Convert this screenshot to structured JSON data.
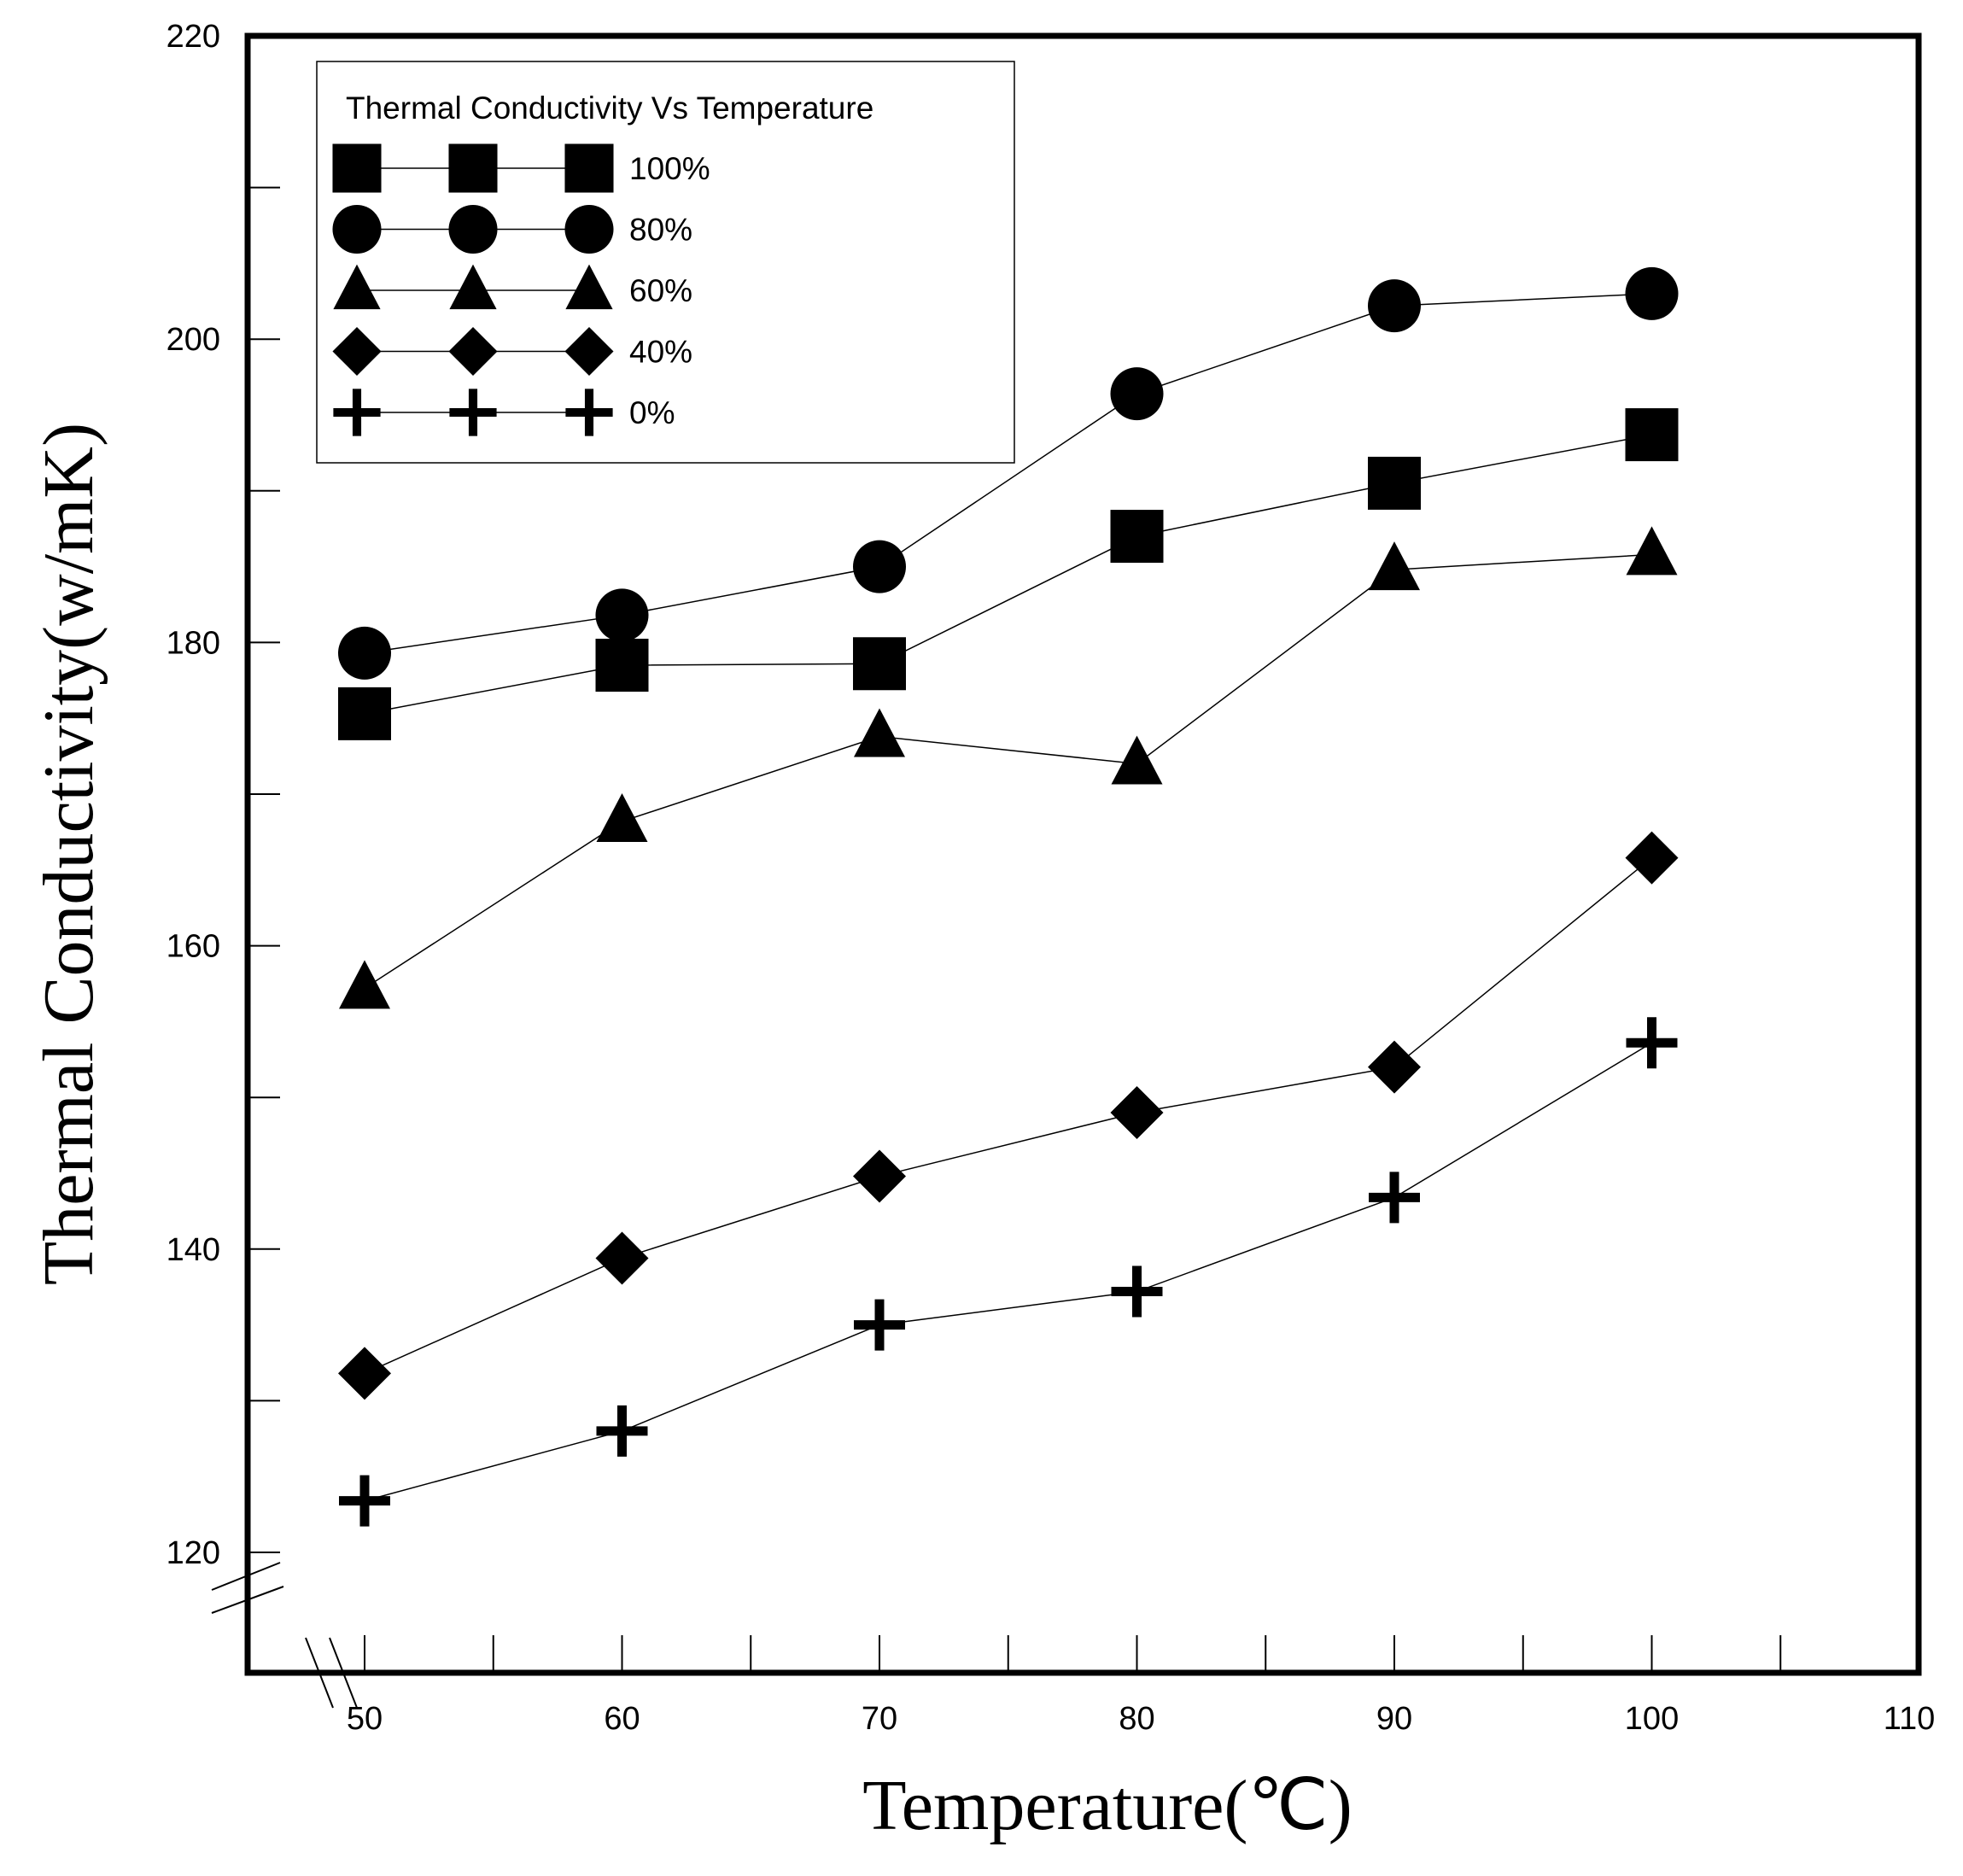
{
  "chart_data": {
    "type": "line",
    "xlabel": "Temperature(℃)",
    "ylabel": "Thermal Conductivity(w/mK)",
    "xlim": [
      45,
      110
    ],
    "ylim": [
      114,
      220
    ],
    "xticks": [
      50,
      60,
      70,
      80,
      90,
      100,
      110
    ],
    "yticks": [
      120,
      140,
      160,
      180,
      200,
      220
    ],
    "legend": {
      "title": "Thermal Conductivity  Vs Temperature",
      "placement": "top-left"
    },
    "x": [
      50,
      60,
      70,
      80,
      90,
      100
    ],
    "series": [
      {
        "name": "100%",
        "marker": "square",
        "values": [
          175.3,
          178.5,
          178.6,
          187.0,
          190.5,
          193.7
        ]
      },
      {
        "name": "80%",
        "marker": "circle",
        "values": [
          179.3,
          181.8,
          185.0,
          196.4,
          202.2,
          203.0
        ]
      },
      {
        "name": "60%",
        "marker": "triangle",
        "values": [
          157.2,
          168.2,
          173.8,
          172.0,
          184.8,
          185.8
        ]
      },
      {
        "name": "40%",
        "marker": "diamond",
        "values": [
          131.8,
          139.4,
          144.8,
          149.0,
          152.0,
          165.8
        ]
      },
      {
        "name": "0%",
        "marker": "plus",
        "values": [
          123.4,
          128.0,
          135.0,
          137.2,
          143.4,
          153.6
        ]
      }
    ]
  }
}
